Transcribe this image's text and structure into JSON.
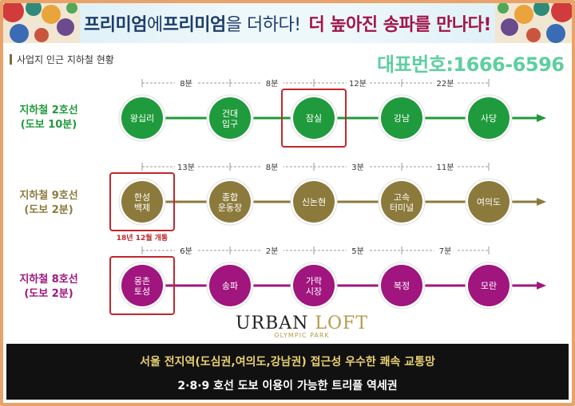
{
  "banner": {
    "part1": "프리미엄",
    "part2": "에 ",
    "part3": "프리미엄",
    "part4": "을 더하다!",
    "part5": "더 높아진 송파를 만나다!"
  },
  "section_title": "사업지 인근 지하철 현황",
  "phone": "대표번호:1666-6596",
  "lines": [
    {
      "name": "지하철 2호선",
      "walk": "(도보 10분)",
      "color": "#1f9a3c",
      "stations": [
        "왕십리",
        "건대\n입구",
        "잠실",
        "강남",
        "사당"
      ],
      "times": [
        "8분",
        "8분",
        "12분",
        "22분"
      ],
      "highlight_index": 2,
      "note": ""
    },
    {
      "name": "지하철 9호선",
      "walk": "(도보 2분)",
      "color": "#8c7a3c",
      "stations": [
        "한성\n백제",
        "종합\n운동장",
        "신논현",
        "고속\n터미널",
        "여의도"
      ],
      "times": [
        "13분",
        "8분",
        "3분",
        "11분"
      ],
      "highlight_index": 0,
      "note": "18년 12월 개통"
    },
    {
      "name": "지하철 8호선",
      "walk": "(도보 2분)",
      "color": "#a0157e",
      "stations": [
        "몽촌\n토성",
        "송파",
        "가락\n시장",
        "복정",
        "모란"
      ],
      "times": [
        "6분",
        "2분",
        "5분",
        "7분"
      ],
      "highlight_index": 0,
      "note": ""
    }
  ],
  "brand": {
    "main1": "URBAN",
    "main2": "LOFT",
    "sub": "OLYMPIC PARK"
  },
  "footer": {
    "line1": "서울 전지역(도심권,여의도,강남권) 접근성 우수한 쾌속 교통망",
    "line2": "2·8·9 호선 도보 이용이 가능한 트리플 역세권"
  },
  "colors": {
    "highlight_box": "#c0272d",
    "phone": "#5ecf9e",
    "footer_bg": "#111111",
    "footer_text1": "#e8cf72"
  }
}
